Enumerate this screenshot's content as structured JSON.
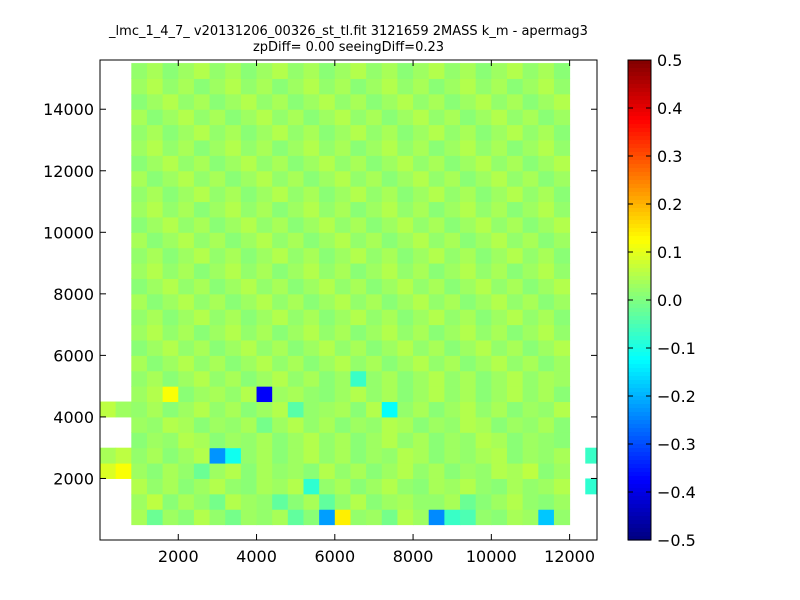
{
  "chart_data": {
    "type": "heatmap",
    "title": "_lmc_1_4_7_ v20131206_00326_st_tl.fit 3121659 2MASS k_m - apermag3",
    "subtitle": "zpDiff= 0.00 seeingDiff=0.23",
    "xlim": [
      0,
      12700
    ],
    "ylim": [
      0,
      15600
    ],
    "x_ticks": [
      2000,
      4000,
      6000,
      8000,
      10000,
      12000
    ],
    "y_ticks": [
      2000,
      4000,
      6000,
      8000,
      10000,
      12000,
      14000
    ],
    "colorbar": {
      "colormap": "jet",
      "range": [
        -0.5,
        0.5
      ],
      "ticks": [
        "0.5",
        "0.4",
        "0.3",
        "0.2",
        "0.1",
        "0.0",
        "−0.1",
        "−0.2",
        "−0.3",
        "−0.4",
        "−0.5"
      ],
      "tick_values": [
        0.5,
        0.4,
        0.3,
        0.2,
        0.1,
        0.0,
        -0.1,
        -0.2,
        -0.3,
        -0.4,
        -0.5
      ]
    },
    "grid": {
      "x_start": 0,
      "x_bin": 400,
      "y_start": 0,
      "y_bin": 500,
      "ncols": 32,
      "nrows": 31,
      "cells_note": "rows from bottom (y=0) upward; null = empty",
      "cells": [
        [
          null,
          null,
          null,
          null,
          null,
          null,
          null,
          null,
          null,
          null,
          null,
          null,
          null,
          null,
          null,
          null,
          null,
          null,
          null,
          null,
          null,
          null,
          null,
          null,
          null,
          null,
          null,
          null,
          null,
          null,
          null,
          null
        ],
        [
          null,
          null,
          0.04,
          -0.02,
          0.03,
          0.01,
          0.05,
          0.02,
          -0.01,
          0.03,
          0.02,
          0.04,
          -0.03,
          0.01,
          -0.22,
          0.14,
          0.02,
          0.03,
          -0.01,
          0.05,
          0.03,
          -0.24,
          -0.07,
          -0.05,
          0.02,
          0.01,
          0.04,
          0.03,
          -0.18,
          0.02,
          null,
          null
        ],
        [
          null,
          null,
          0.03,
          0.06,
          0.01,
          0.04,
          0.02,
          -0.01,
          0.05,
          0.03,
          0.02,
          -0.03,
          0.01,
          0.04,
          -0.03,
          0.02,
          0.05,
          0.01,
          0.03,
          0.04,
          0.02,
          0.02,
          0.04,
          -0.02,
          0.01,
          0.03,
          0.05,
          0.02,
          0.01,
          0.03,
          null,
          null
        ],
        [
          null,
          null,
          0.05,
          0.02,
          0.04,
          0.01,
          0.03,
          0.05,
          0.02,
          0.01,
          0.04,
          0.03,
          0.05,
          -0.08,
          0.02,
          0.04,
          0.01,
          0.03,
          0.05,
          0.02,
          0.01,
          0.04,
          0.03,
          0.05,
          0.02,
          0.01,
          0.04,
          0.02,
          0.03,
          0.05,
          null,
          -0.08
        ],
        [
          0.09,
          0.12,
          0.03,
          0.01,
          0.04,
          0.02,
          -0.02,
          0.03,
          0.05,
          0.01,
          0.04,
          0.02,
          0.03,
          0.01,
          0.05,
          0.02,
          0.04,
          0.01,
          0.03,
          0.05,
          0.02,
          0.04,
          0.01,
          0.03,
          0.02,
          0.05,
          0.04,
          0.06,
          0.01,
          0.03,
          null,
          null
        ],
        [
          0.04,
          0.06,
          0.02,
          0.04,
          0.01,
          0.03,
          0.05,
          -0.23,
          -0.11,
          0.02,
          0.04,
          0.01,
          0.03,
          0.05,
          0.02,
          0.04,
          0.01,
          0.03,
          0.02,
          0.05,
          0.04,
          0.01,
          0.03,
          0.02,
          0.04,
          0.05,
          0.01,
          0.03,
          0.02,
          0.04,
          null,
          -0.07
        ],
        [
          null,
          null,
          0.01,
          0.03,
          0.02,
          0.05,
          0.04,
          0.01,
          0.03,
          0.02,
          0.04,
          0.01,
          0.03,
          0.05,
          0.02,
          0.04,
          0.01,
          0.03,
          0.05,
          0.02,
          0.04,
          0.01,
          0.03,
          0.02,
          0.05,
          0.04,
          0.01,
          0.03,
          0.02,
          0.01,
          null,
          null
        ],
        [
          null,
          null,
          0.03,
          0.02,
          0.05,
          0.04,
          0.01,
          0.03,
          0.02,
          0.04,
          -0.01,
          0.03,
          0.05,
          0.02,
          0.04,
          0.01,
          0.03,
          0.02,
          0.05,
          0.04,
          0.01,
          0.03,
          0.02,
          0.05,
          0.04,
          0.01,
          0.03,
          0.02,
          0.04,
          0.01,
          null,
          null
        ],
        [
          0.06,
          0.03,
          0.02,
          0.04,
          0.01,
          0.03,
          0.05,
          0.02,
          0.04,
          0.01,
          0.03,
          0.05,
          -0.04,
          0.02,
          0.03,
          0.04,
          0.01,
          0.05,
          -0.12,
          0.02,
          0.04,
          0.01,
          0.03,
          0.05,
          0.02,
          0.04,
          0.01,
          0.03,
          0.02,
          0.05,
          null,
          null
        ],
        [
          null,
          null,
          0.03,
          0.05,
          0.12,
          0.01,
          0.03,
          0.04,
          0.02,
          0.05,
          -0.38,
          0.03,
          0.04,
          0.02,
          0.01,
          0.03,
          0.05,
          0.02,
          0.04,
          0.01,
          0.03,
          0.05,
          0.02,
          0.04,
          0.01,
          0.03,
          0.05,
          0.02,
          0.04,
          0.01,
          null,
          null
        ],
        [
          null,
          null,
          0.02,
          0.04,
          0.01,
          0.03,
          0.05,
          0.02,
          0.04,
          0.01,
          0.03,
          0.05,
          0.02,
          0.04,
          0.01,
          0.03,
          -0.07,
          0.02,
          0.04,
          0.01,
          0.03,
          0.05,
          0.02,
          0.04,
          0.01,
          0.03,
          0.05,
          0.02,
          0.04,
          0.03,
          null,
          null
        ],
        [
          null,
          null,
          0.04,
          0.01,
          0.03,
          0.05,
          0.02,
          0.04,
          0.01,
          0.03,
          0.05,
          0.02,
          0.04,
          0.01,
          0.03,
          0.05,
          0.02,
          0.04,
          0.01,
          0.03,
          0.05,
          0.02,
          0.04,
          0.01,
          0.03,
          0.05,
          0.02,
          0.04,
          0.01,
          0.03,
          null,
          null
        ],
        [
          null,
          null,
          0.01,
          0.03,
          0.05,
          0.02,
          0.04,
          0.01,
          0.03,
          0.05,
          0.02,
          0.04,
          0.01,
          0.03,
          0.05,
          0.02,
          0.04,
          0.01,
          0.03,
          0.05,
          0.02,
          0.04,
          0.01,
          0.03,
          0.05,
          0.02,
          0.04,
          0.01,
          0.03,
          0.05,
          null,
          null
        ],
        [
          null,
          null,
          0.03,
          0.05,
          0.02,
          0.04,
          0.01,
          0.03,
          0.05,
          0.02,
          0.04,
          0.01,
          0.03,
          0.05,
          0.02,
          0.04,
          0.01,
          0.03,
          0.05,
          0.02,
          0.04,
          0.01,
          0.03,
          0.05,
          0.02,
          0.04,
          0.01,
          0.03,
          0.05,
          0.02,
          null,
          null
        ],
        [
          null,
          null,
          0.02,
          0.04,
          0.01,
          0.03,
          0.05,
          0.02,
          0.04,
          0.01,
          0.03,
          0.05,
          0.02,
          0.04,
          0.01,
          0.03,
          0.05,
          0.02,
          0.04,
          0.01,
          0.03,
          0.05,
          0.02,
          0.04,
          0.01,
          0.03,
          0.05,
          0.02,
          0.04,
          0.01,
          null,
          null
        ],
        [
          null,
          null,
          0.04,
          0.01,
          0.03,
          0.05,
          0.02,
          0.04,
          0.01,
          0.03,
          0.05,
          0.02,
          0.04,
          0.01,
          0.03,
          0.05,
          0.02,
          0.04,
          0.01,
          0.03,
          0.05,
          0.02,
          0.04,
          0.01,
          0.03,
          0.05,
          0.02,
          0.04,
          0.01,
          0.03,
          null,
          null
        ],
        [
          null,
          null,
          0.01,
          0.03,
          0.05,
          0.02,
          0.04,
          0.01,
          0.03,
          0.05,
          0.02,
          0.04,
          0.01,
          0.03,
          0.05,
          0.02,
          0.04,
          0.01,
          0.03,
          0.05,
          0.02,
          0.04,
          0.01,
          0.03,
          0.05,
          0.02,
          0.04,
          0.01,
          0.03,
          0.05,
          null,
          null
        ],
        [
          null,
          null,
          0.03,
          0.05,
          0.02,
          0.04,
          0.01,
          0.03,
          0.05,
          0.02,
          0.04,
          0.01,
          0.03,
          0.05,
          0.02,
          0.04,
          0.01,
          0.03,
          0.05,
          0.02,
          0.04,
          0.01,
          0.03,
          0.05,
          0.02,
          0.04,
          0.01,
          0.03,
          0.05,
          0.02,
          null,
          null
        ],
        [
          null,
          null,
          0.02,
          0.04,
          0.01,
          0.03,
          0.05,
          0.02,
          0.04,
          0.01,
          0.03,
          0.05,
          0.02,
          0.04,
          0.01,
          0.03,
          0.05,
          0.02,
          0.04,
          0.01,
          0.03,
          0.05,
          0.02,
          0.04,
          0.01,
          0.03,
          0.05,
          0.02,
          0.04,
          0.01,
          null,
          null
        ],
        [
          null,
          null,
          0.04,
          0.01,
          0.03,
          0.05,
          0.02,
          0.04,
          0.01,
          0.03,
          0.05,
          0.02,
          0.04,
          0.01,
          0.03,
          0.05,
          0.02,
          0.04,
          0.01,
          0.03,
          0.05,
          0.02,
          0.04,
          0.01,
          0.03,
          0.05,
          0.02,
          0.04,
          0.01,
          0.03,
          null,
          null
        ],
        [
          null,
          null,
          0.01,
          0.03,
          0.05,
          0.02,
          0.04,
          0.01,
          0.03,
          0.05,
          0.02,
          0.04,
          0.01,
          0.03,
          0.05,
          0.02,
          0.04,
          0.01,
          0.03,
          0.05,
          0.02,
          0.04,
          0.01,
          0.03,
          0.05,
          0.02,
          0.04,
          0.01,
          0.03,
          0.05,
          null,
          null
        ],
        [
          null,
          null,
          0.03,
          0.05,
          0.02,
          0.04,
          0.01,
          0.03,
          0.05,
          0.02,
          0.04,
          0.01,
          0.03,
          0.05,
          0.02,
          0.04,
          0.01,
          0.03,
          0.05,
          0.02,
          0.04,
          0.01,
          0.03,
          0.05,
          0.02,
          0.04,
          0.01,
          0.03,
          0.05,
          0.02,
          null,
          null
        ],
        [
          null,
          null,
          0.02,
          0.04,
          0.01,
          0.03,
          0.05,
          0.02,
          0.04,
          0.01,
          0.03,
          0.05,
          0.02,
          0.04,
          0.01,
          0.03,
          0.05,
          0.02,
          0.04,
          0.01,
          0.03,
          0.05,
          0.02,
          0.04,
          0.01,
          0.03,
          0.05,
          0.02,
          0.04,
          0.01,
          null,
          null
        ],
        [
          null,
          null,
          0.04,
          0.01,
          0.03,
          0.05,
          0.02,
          0.04,
          0.01,
          0.03,
          0.05,
          0.02,
          0.04,
          0.01,
          0.03,
          0.05,
          0.02,
          0.04,
          0.01,
          0.03,
          0.05,
          0.02,
          0.04,
          0.01,
          0.03,
          0.05,
          0.02,
          0.04,
          0.01,
          0.03,
          null,
          null
        ],
        [
          null,
          null,
          0.01,
          0.03,
          0.05,
          0.02,
          0.04,
          0.01,
          0.03,
          0.05,
          0.02,
          0.04,
          0.01,
          0.03,
          0.05,
          0.02,
          0.04,
          0.01,
          0.03,
          0.05,
          0.02,
          0.04,
          0.01,
          0.03,
          0.05,
          0.02,
          0.04,
          0.01,
          0.03,
          0.05,
          null,
          null
        ],
        [
          null,
          null,
          0.03,
          0.05,
          0.02,
          0.04,
          0.01,
          0.03,
          0.05,
          0.02,
          0.04,
          0.01,
          0.03,
          0.05,
          0.02,
          0.04,
          0.01,
          0.03,
          0.05,
          0.02,
          0.04,
          0.01,
          0.03,
          0.05,
          0.02,
          0.04,
          0.01,
          0.03,
          0.05,
          0.02,
          null,
          null
        ],
        [
          null,
          null,
          0.02,
          0.04,
          0.01,
          0.03,
          0.05,
          0.02,
          0.04,
          0.01,
          0.03,
          0.05,
          0.02,
          0.04,
          0.01,
          0.03,
          0.05,
          0.02,
          0.04,
          0.01,
          0.03,
          0.05,
          0.02,
          0.04,
          0.01,
          0.03,
          0.05,
          0.02,
          0.04,
          0.01,
          null,
          null
        ],
        [
          null,
          null,
          0.04,
          0.01,
          0.03,
          0.05,
          0.02,
          0.04,
          0.01,
          0.03,
          0.05,
          0.02,
          0.04,
          0.01,
          0.03,
          0.05,
          0.02,
          0.04,
          0.01,
          0.03,
          0.05,
          0.02,
          0.04,
          0.01,
          0.03,
          0.05,
          0.02,
          0.04,
          0.01,
          0.03,
          null,
          null
        ],
        [
          null,
          null,
          0.01,
          0.03,
          0.05,
          0.02,
          0.04,
          0.01,
          0.03,
          0.05,
          0.02,
          0.04,
          0.01,
          0.03,
          0.05,
          0.02,
          0.04,
          0.01,
          0.03,
          0.05,
          0.02,
          0.04,
          0.01,
          0.03,
          0.05,
          0.02,
          0.04,
          0.01,
          0.03,
          0.05,
          null,
          null
        ],
        [
          null,
          null,
          0.03,
          0.05,
          0.02,
          0.04,
          0.01,
          0.03,
          0.05,
          0.02,
          0.04,
          0.01,
          0.03,
          0.05,
          0.02,
          0.04,
          0.01,
          0.03,
          0.05,
          0.02,
          0.04,
          0.01,
          0.03,
          0.05,
          0.02,
          0.04,
          0.01,
          0.03,
          0.05,
          0.02,
          null,
          null
        ],
        [
          null,
          null,
          0.02,
          0.04,
          0.01,
          0.03,
          0.05,
          0.02,
          0.04,
          0.01,
          0.03,
          0.05,
          0.02,
          0.04,
          0.01,
          0.03,
          0.05,
          0.02,
          0.04,
          0.01,
          0.03,
          0.05,
          0.02,
          0.04,
          0.01,
          0.03,
          0.05,
          0.02,
          0.04,
          0.01,
          null,
          null
        ]
      ]
    }
  }
}
